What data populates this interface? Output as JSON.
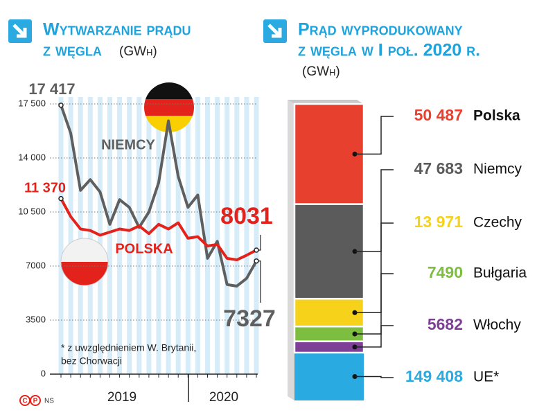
{
  "chart_data": [
    {
      "type": "line",
      "title": [
        "Wytwarzanie prądu",
        "z węgla"
      ],
      "unit": "(GWh)",
      "categories": [
        null,
        null,
        null,
        null,
        null,
        null,
        null,
        null,
        null,
        null,
        null,
        null,
        null,
        null,
        null,
        null,
        null,
        null,
        null,
        null,
        null
      ],
      "year_labels": [
        "2019",
        "2020"
      ],
      "series": [
        {
          "name": "NIEMCY",
          "color": "#5f5f5f",
          "values": [
            17417,
            15600,
            11900,
            12600,
            11800,
            9700,
            11300,
            10800,
            9500,
            10500,
            12400,
            16400,
            12800,
            10800,
            11600,
            7500,
            8600,
            5800,
            5700,
            6200,
            7327
          ],
          "value_labels": [
            "17 417",
            null,
            null,
            null,
            null,
            null,
            null,
            null,
            null,
            null,
            null,
            null,
            null,
            null,
            null,
            null,
            null,
            null,
            null,
            null,
            "7327"
          ]
        },
        {
          "name": "POLSKA",
          "color": "#e3231b",
          "values": [
            11370,
            10200,
            9400,
            9300,
            9000,
            9200,
            9400,
            9300,
            9600,
            9100,
            9700,
            9400,
            9800,
            8800,
            8900,
            8300,
            8400,
            7500,
            7400,
            7700,
            8031
          ],
          "value_labels": [
            "11 370",
            null,
            null,
            null,
            null,
            null,
            null,
            null,
            null,
            null,
            null,
            null,
            null,
            null,
            null,
            null,
            null,
            null,
            null,
            null,
            "8031"
          ]
        }
      ],
      "ylim": [
        0,
        17500
      ],
      "yticks": [
        0,
        {
          "value": 3500,
          "label": "3500"
        },
        {
          "value": 7000,
          "label": "7000"
        },
        {
          "value": 10500,
          "label": "10 500"
        },
        {
          "value": 14000,
          "label": "14 000"
        },
        {
          "value": 17500,
          "label": "17 500"
        }
      ],
      "grid": true,
      "note": [
        "* z uwzględnieniem W. Brytanii,",
        "bez Chorwacji"
      ]
    },
    {
      "type": "stacked-column",
      "title": [
        "Prąd wyprodukowany",
        "z węgla w I poł. 2020 r."
      ],
      "unit": "(GWh)",
      "categories": [
        "Polska",
        "Niemcy",
        "Czechy",
        "Bułgaria",
        "Włochy"
      ],
      "values": [
        50487,
        47683,
        13971,
        7490,
        5682
      ],
      "value_labels": [
        "50 487",
        "47 683",
        "13 971",
        "7490",
        "5682"
      ],
      "colors": [
        "#e8402f",
        "#5b5b5b",
        "#f6d21a",
        "#7dbd3f",
        "#7e3f97"
      ],
      "total": {
        "name": "UE*",
        "value": 149408,
        "value_label": "149 408",
        "color": "#29abe2"
      }
    }
  ],
  "credit": "NS"
}
